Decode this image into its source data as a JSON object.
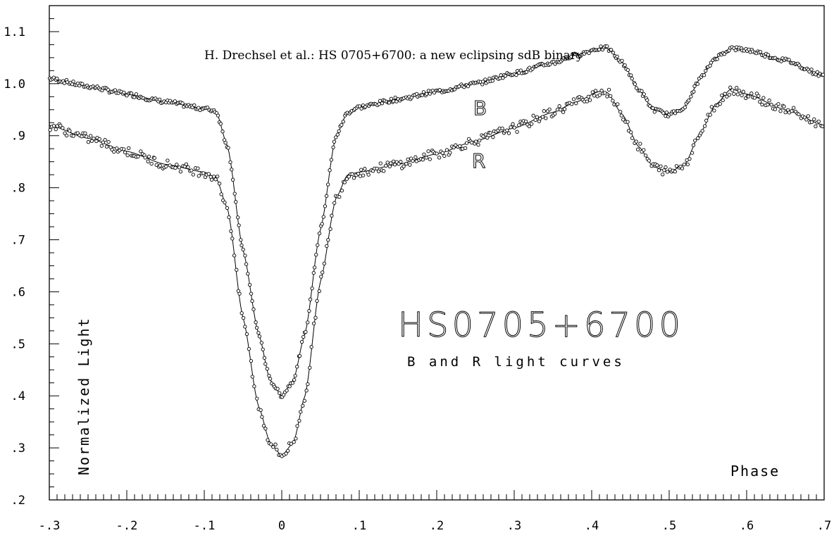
{
  "chart_data": {
    "type": "scatter",
    "header": "H. Drechsel et al.: HS 0705+6700: a new eclipsing sdB binary",
    "title": "HS0705+6700",
    "subtitle": "B and R light curves",
    "xlabel": "Phase",
    "ylabel": "Normalized Light",
    "xlim": [
      -0.3,
      0.7
    ],
    "ylim": [
      0.2,
      1.15
    ],
    "x_ticks": [
      -0.3,
      -0.2,
      -0.1,
      0,
      0.1,
      0.2,
      0.3,
      0.4,
      0.5,
      0.6,
      0.7
    ],
    "x_tick_labels": [
      "-.3",
      "-.2",
      "-.1",
      "0",
      ".1",
      ".2",
      ".3",
      ".4",
      ".5",
      ".6",
      ".7"
    ],
    "y_ticks": [
      0.2,
      0.3,
      0.4,
      0.5,
      0.6,
      0.7,
      0.8,
      0.9,
      1.0,
      1.1
    ],
    "y_tick_labels": [
      ".2",
      ".3",
      ".4",
      ".5",
      ".6",
      ".7",
      ".8",
      ".9",
      "1.0",
      "1.1"
    ],
    "grid": false,
    "series": [
      {
        "name": "B",
        "label_position": [
          0.255,
          0.935
        ],
        "x": [
          -0.3,
          -0.25,
          -0.2,
          -0.15,
          -0.1,
          -0.085,
          -0.07,
          -0.05,
          -0.03,
          -0.015,
          0,
          0.015,
          0.03,
          0.05,
          0.07,
          0.085,
          0.1,
          0.15,
          0.2,
          0.25,
          0.3,
          0.35,
          0.38,
          0.41,
          0.42,
          0.44,
          0.46,
          0.48,
          0.5,
          0.52,
          0.54,
          0.56,
          0.58,
          0.6,
          0.65,
          0.7
        ],
        "y": [
          1.01,
          0.995,
          0.98,
          0.965,
          0.952,
          0.948,
          0.88,
          0.68,
          0.52,
          0.43,
          0.4,
          0.43,
          0.52,
          0.72,
          0.9,
          0.945,
          0.955,
          0.97,
          0.985,
          1.0,
          1.02,
          1.04,
          1.055,
          1.068,
          1.068,
          1.04,
          0.99,
          0.95,
          0.94,
          0.955,
          1.01,
          1.05,
          1.068,
          1.065,
          1.045,
          1.015
        ]
      },
      {
        "name": "R",
        "label_position": [
          0.255,
          0.845
        ],
        "x": [
          -0.3,
          -0.25,
          -0.2,
          -0.15,
          -0.1,
          -0.085,
          -0.07,
          -0.05,
          -0.03,
          -0.015,
          0,
          0.015,
          0.03,
          0.05,
          0.07,
          0.085,
          0.1,
          0.15,
          0.2,
          0.25,
          0.3,
          0.35,
          0.38,
          0.41,
          0.42,
          0.44,
          0.46,
          0.48,
          0.5,
          0.52,
          0.54,
          0.56,
          0.58,
          0.6,
          0.65,
          0.7
        ],
        "y": [
          0.92,
          0.895,
          0.87,
          0.845,
          0.83,
          0.82,
          0.76,
          0.55,
          0.38,
          0.31,
          0.285,
          0.31,
          0.4,
          0.62,
          0.78,
          0.825,
          0.83,
          0.845,
          0.865,
          0.89,
          0.915,
          0.945,
          0.965,
          0.985,
          0.983,
          0.94,
          0.88,
          0.84,
          0.83,
          0.845,
          0.905,
          0.96,
          0.99,
          0.98,
          0.95,
          0.92
        ]
      }
    ]
  }
}
